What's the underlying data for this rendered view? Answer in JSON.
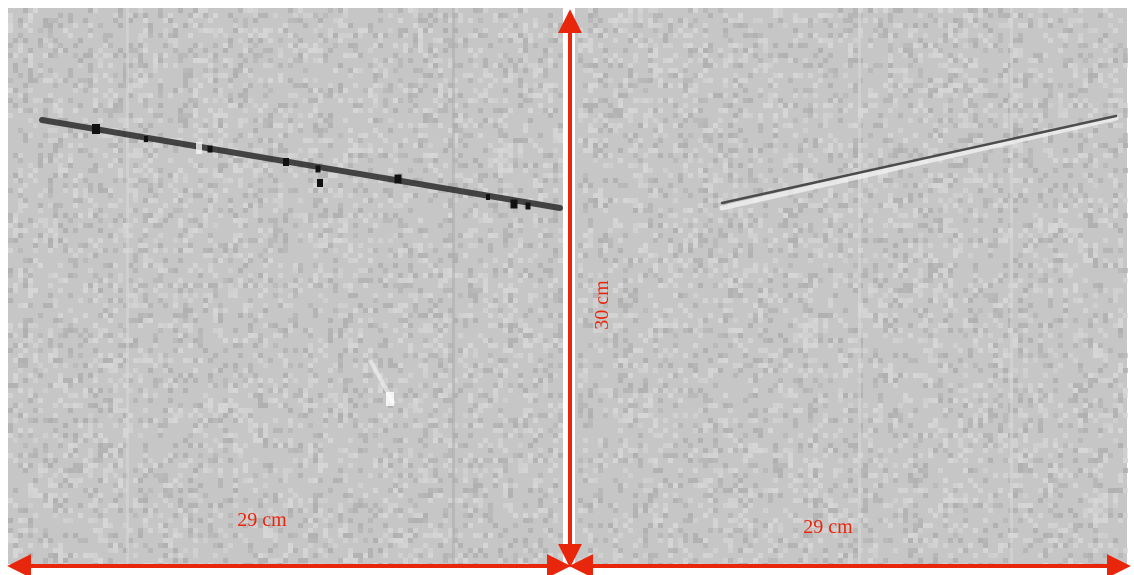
{
  "colors": {
    "background": "#c6c6c6",
    "noise_light": "#d8d8d8",
    "noise_dark": "#adadad",
    "track_dark": "#2b2b2b",
    "track_light": "#f4f4f4",
    "annotation": "#e8260c"
  },
  "panels": [
    {
      "name": "left-panel"
    },
    {
      "name": "right-panel"
    }
  ],
  "measurements": {
    "left_width": "29 cm",
    "right_width": "29 cm",
    "height": "30 cm"
  }
}
